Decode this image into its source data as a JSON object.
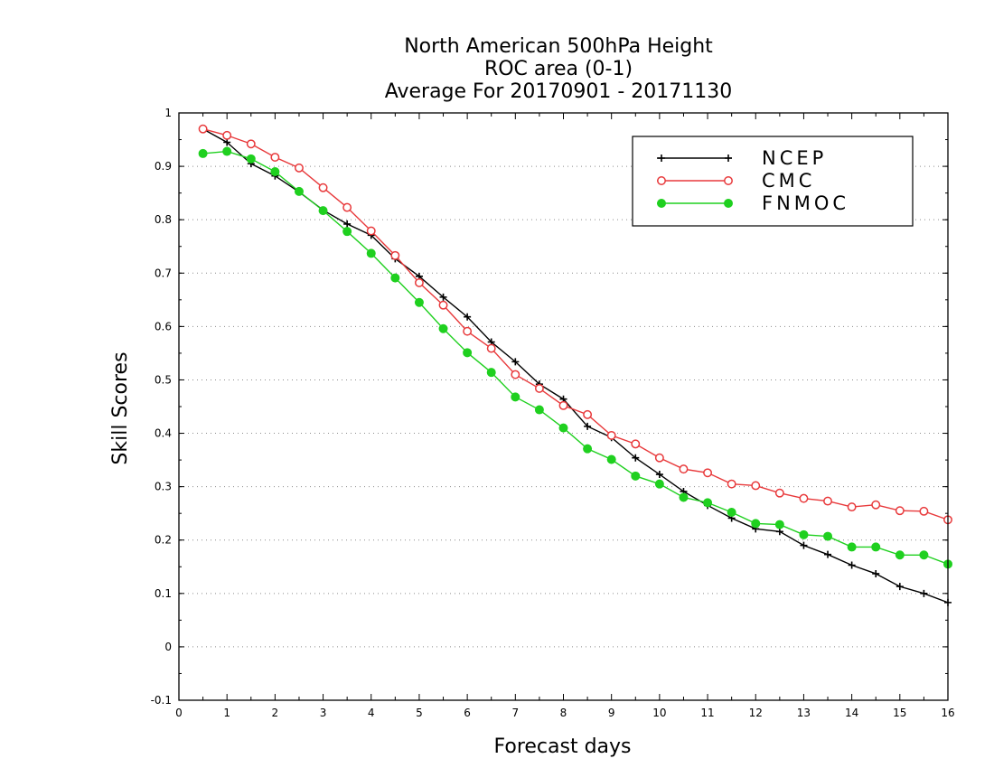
{
  "chart_data": {
    "type": "line",
    "title": [
      "North American 500hPa Height",
      "ROC area (0-1)",
      "Average For 20170901 - 20171130"
    ],
    "xlabel": "Forecast days",
    "ylabel": "Skill Scores",
    "xlim": [
      0,
      16
    ],
    "ylim": [
      -0.1,
      1
    ],
    "xticks": [
      0,
      1,
      2,
      3,
      4,
      5,
      6,
      7,
      8,
      9,
      10,
      11,
      12,
      13,
      14,
      15,
      16
    ],
    "yticks": [
      -0.1,
      0,
      0.1,
      0.2,
      0.3,
      0.4,
      0.5,
      0.6,
      0.7,
      0.8,
      0.9,
      1
    ],
    "ytick_labels": [
      "-0.1",
      "0",
      "0.1",
      "0.2",
      "0.3",
      "0.4",
      "0.5",
      "0.6",
      "0.7",
      "0.8",
      "0.9",
      "1"
    ],
    "grid": "horizontal-dotted",
    "legend_position": "top-right",
    "x": [
      0.5,
      1,
      1.5,
      2,
      2.5,
      3,
      3.5,
      4,
      4.5,
      5,
      5.5,
      6,
      6.5,
      7,
      7.5,
      8,
      8.5,
      9,
      9.5,
      10,
      10.5,
      11,
      11.5,
      12,
      12.5,
      13,
      13.5,
      14,
      14.5,
      15,
      15.5,
      16
    ],
    "series": [
      {
        "name": "NCEP",
        "color": "#000000",
        "marker": "plus",
        "values": [
          0.97,
          0.945,
          0.905,
          0.882,
          0.852,
          0.818,
          0.792,
          0.771,
          0.727,
          0.694,
          0.655,
          0.618,
          0.571,
          0.534,
          0.492,
          0.464,
          0.413,
          0.392,
          0.354,
          0.323,
          0.291,
          0.265,
          0.241,
          0.221,
          0.216,
          0.19,
          0.173,
          0.153,
          0.137,
          0.113,
          0.1,
          0.083
        ]
      },
      {
        "name": "CMC",
        "color": "#e8393b",
        "marker": "open-circle",
        "values": [
          0.97,
          0.958,
          0.942,
          0.917,
          0.897,
          0.86,
          0.823,
          0.779,
          0.733,
          0.682,
          0.64,
          0.591,
          0.559,
          0.51,
          0.484,
          0.452,
          0.435,
          0.396,
          0.38,
          0.354,
          0.333,
          0.326,
          0.305,
          0.302,
          0.288,
          0.278,
          0.273,
          0.262,
          0.266,
          0.255,
          0.254,
          0.238
        ]
      },
      {
        "name": "FNMOC",
        "color": "#1fd01f",
        "marker": "filled-circle",
        "values": [
          0.924,
          0.928,
          0.914,
          0.89,
          0.853,
          0.817,
          0.778,
          0.737,
          0.691,
          0.645,
          0.596,
          0.551,
          0.514,
          0.468,
          0.444,
          0.41,
          0.371,
          0.351,
          0.32,
          0.305,
          0.28,
          0.27,
          0.252,
          0.231,
          0.229,
          0.21,
          0.207,
          0.187,
          0.187,
          0.172,
          0.172,
          0.155
        ]
      }
    ]
  }
}
